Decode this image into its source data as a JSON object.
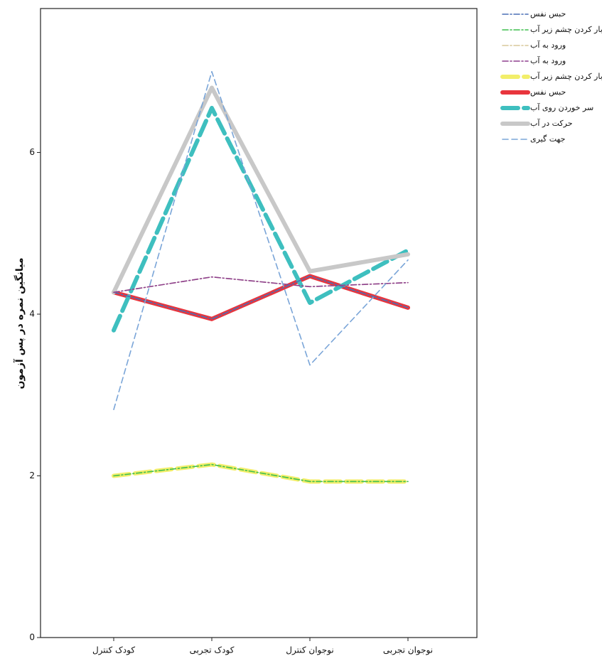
{
  "chart_data": {
    "type": "line",
    "y_label": "میانگین نمره در پس آزمون",
    "categories": [
      "کودک کنترل",
      "کودک تجربی",
      "نوجوان کنترل",
      "نوجوان تجربی"
    ],
    "ylim": [
      0,
      7.78
    ],
    "yticks": [
      0,
      2,
      4,
      6
    ],
    "series": [
      {
        "name": "حبس نفس",
        "color": "#4a6fb5",
        "style": "dashdot",
        "weight": "thin",
        "values": [
          4.27,
          3.94,
          4.47,
          4.08
        ]
      },
      {
        "name": "بار کردن چشم زیر آب",
        "color": "#3fbf4f",
        "style": "dashdot",
        "weight": "thin",
        "values": [
          2.0,
          2.14,
          1.93,
          1.93
        ]
      },
      {
        "name": "ورود به آب",
        "color": "#d8c89a",
        "style": "dashdot",
        "weight": "thin",
        "values": [
          4.27,
          4.46,
          4.34,
          4.39
        ]
      },
      {
        "name": "ورود به آب",
        "color": "#8e3f8e",
        "style": "dashdot",
        "weight": "thin",
        "values": [
          4.27,
          4.46,
          4.34,
          4.39
        ]
      },
      {
        "name": "بار کردن چشم زیر آب",
        "color": "#f2ee6a",
        "style": "dashed",
        "weight": "thick",
        "values": [
          2.0,
          2.14,
          1.93,
          1.93
        ]
      },
      {
        "name": "حبس نفس",
        "color": "#e8353d",
        "style": "solid",
        "weight": "thick",
        "values": [
          4.27,
          3.94,
          4.47,
          4.08
        ]
      },
      {
        "name": "سر خوردن روی آب",
        "color": "#3ebfbf",
        "style": "dashed",
        "weight": "thick",
        "values": [
          3.8,
          6.55,
          4.14,
          4.79
        ]
      },
      {
        "name": "حرکت در آب",
        "color": "#c8c8c8",
        "style": "solid",
        "weight": "thick",
        "values": [
          4.27,
          6.8,
          4.53,
          4.74
        ]
      },
      {
        "name": "جهت گیری",
        "color": "#7aa5d8",
        "style": "dashed",
        "weight": "thin",
        "values": [
          2.82,
          7.0,
          3.37,
          4.67
        ]
      }
    ]
  }
}
